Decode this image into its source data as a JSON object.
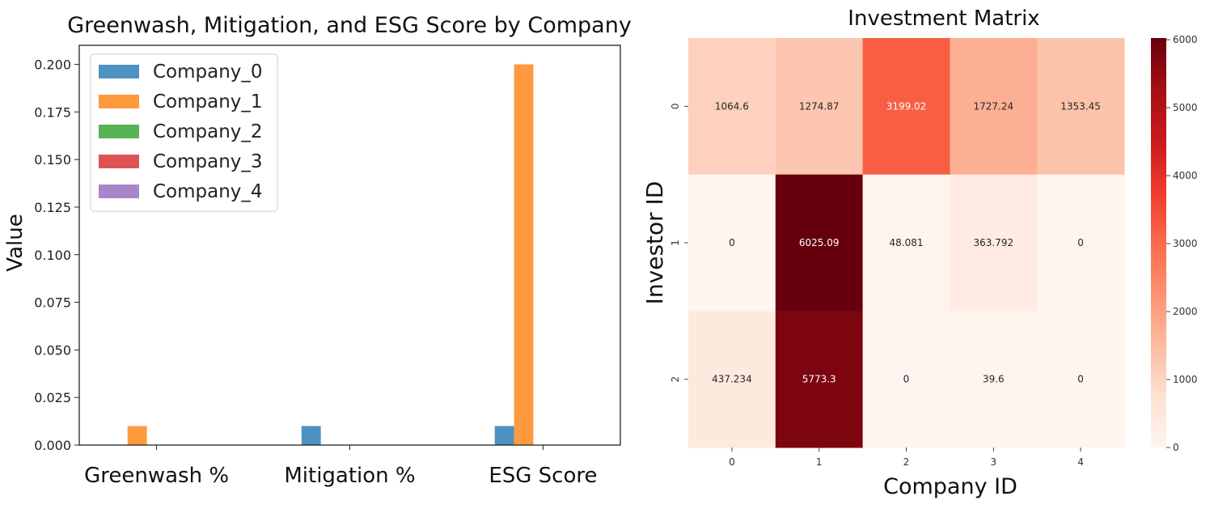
{
  "chart_data": [
    {
      "type": "bar",
      "title": "Greenwash, Mitigation, and ESG Score by Company",
      "xlabel": "",
      "ylabel": "Value",
      "categories": [
        "Greenwash %",
        "Mitigation %",
        "ESG Score"
      ],
      "ylim": [
        0,
        0.21
      ],
      "yticks": [
        "0.000",
        "0.025",
        "0.050",
        "0.075",
        "0.100",
        "0.125",
        "0.150",
        "0.175",
        "0.200"
      ],
      "legend_position": "top-left",
      "grid": false,
      "series": [
        {
          "name": "Company_0",
          "color": "#1f77b4",
          "values": [
            0,
            0.01,
            0.01
          ]
        },
        {
          "name": "Company_1",
          "color": "#ff7f0e",
          "values": [
            0.01,
            0,
            0.2
          ]
        },
        {
          "name": "Company_2",
          "color": "#2ca02c",
          "values": [
            0,
            0,
            0
          ]
        },
        {
          "name": "Company_3",
          "color": "#d62728",
          "values": [
            0,
            0,
            0
          ]
        },
        {
          "name": "Company_4",
          "color": "#9467bd",
          "values": [
            0,
            0,
            0
          ]
        }
      ]
    },
    {
      "type": "heatmap",
      "title": "Investment Matrix",
      "xlabel": "Company ID",
      "ylabel": "Investor ID",
      "x_labels": [
        "0",
        "1",
        "2",
        "3",
        "4"
      ],
      "y_labels": [
        "0",
        "1",
        "2"
      ],
      "values": [
        [
          1064.6,
          1274.87,
          3199.02,
          1727.24,
          1353.45
        ],
        [
          0,
          6025.09,
          48.081,
          363.792,
          0
        ],
        [
          437.234,
          5773.3,
          0,
          39.6,
          0
        ]
      ],
      "labels": [
        [
          "1064.6",
          "1274.87",
          "3199.02",
          "1727.24",
          "1353.45"
        ],
        [
          "0",
          "6025.09",
          "48.081",
          "363.792",
          "0"
        ],
        [
          "437.234",
          "5773.3",
          "0",
          "39.6",
          "0"
        ]
      ],
      "colormap": "Reds",
      "vmin": 0,
      "vmax": 6025.09,
      "colorbar_ticks": [
        "0",
        "1000",
        "2000",
        "3000",
        "4000",
        "5000",
        "6000"
      ]
    }
  ]
}
